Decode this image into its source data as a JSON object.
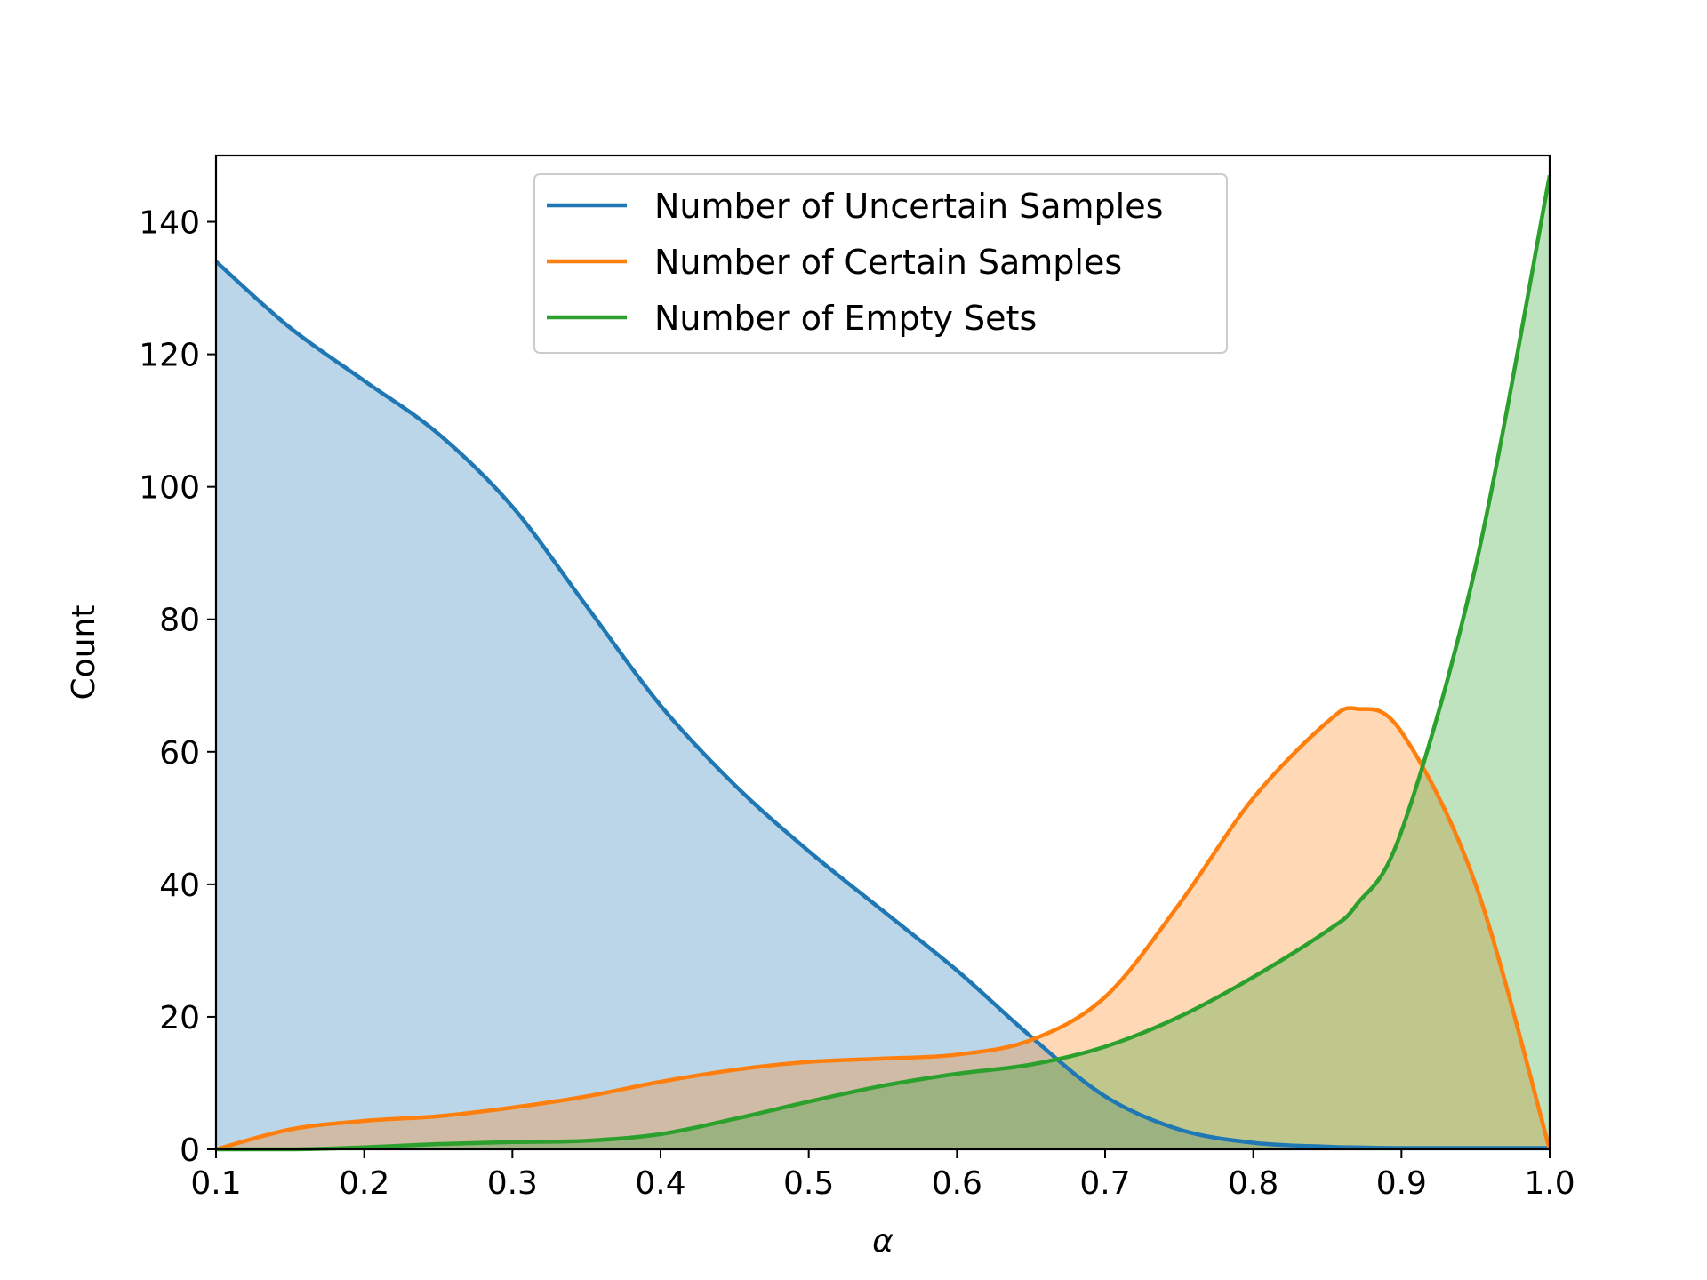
{
  "chart_data": {
    "type": "area",
    "title": "",
    "xlabel": "α",
    "ylabel": "Count",
    "xlim": [
      0.1,
      1.0
    ],
    "ylim": [
      0,
      150
    ],
    "xticks": [
      "0.1",
      "0.2",
      "0.3",
      "0.4",
      "0.5",
      "0.6",
      "0.7",
      "0.8",
      "0.9",
      "1.0"
    ],
    "yticks": [
      "0",
      "20",
      "40",
      "60",
      "80",
      "100",
      "120",
      "140"
    ],
    "grid": false,
    "legend_position": "top-center",
    "x": [
      0.1,
      0.15,
      0.2,
      0.25,
      0.3,
      0.35,
      0.4,
      0.45,
      0.5,
      0.55,
      0.6,
      0.65,
      0.7,
      0.75,
      0.8,
      0.85,
      0.87,
      0.9,
      0.95,
      1.0
    ],
    "series": [
      {
        "name": "Number of Uncertain Samples",
        "color": "#1f77b4",
        "fill": "#bbd6e8",
        "values": [
          134,
          124,
          116,
          108,
          97,
          82,
          67,
          55,
          45,
          36,
          27,
          17,
          8,
          3,
          1,
          0.4,
          0.3,
          0.2,
          0.2,
          0.2
        ]
      },
      {
        "name": "Number of Certain Samples",
        "color": "#ff7f0e",
        "fill": "#ffd1a8",
        "values": [
          0,
          3,
          4.3,
          5,
          6.3,
          8,
          10.2,
          12,
          13.2,
          13.7,
          14.3,
          16.5,
          23,
          37,
          53,
          64.5,
          66.5,
          63,
          40,
          0
        ]
      },
      {
        "name": "Number of Empty Sets",
        "color": "#2ca02c",
        "fill": "#c2e3c0",
        "values": [
          0,
          0,
          0.3,
          0.8,
          1.1,
          1.3,
          2.3,
          4.6,
          7.2,
          9.6,
          11.4,
          12.8,
          15.5,
          20,
          26,
          33,
          37,
          48,
          88,
          147
        ]
      }
    ]
  }
}
